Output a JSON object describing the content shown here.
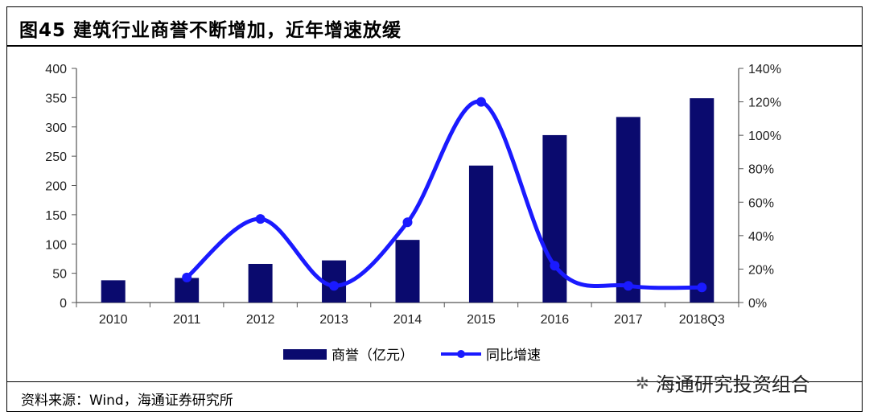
{
  "title": "图45 建筑行业商誉不断增加，近年增速放缓",
  "source": "资料来源：Wind，海通证券研究所",
  "watermark": "海通研究投资组合",
  "colors": {
    "bar": "#0a0a6e",
    "line": "#1a1aff",
    "axis": "#555555"
  },
  "chart_data": {
    "type": "bar",
    "categories": [
      "2010",
      "2011",
      "2012",
      "2013",
      "2014",
      "2015",
      "2016",
      "2017",
      "2018Q3"
    ],
    "series": [
      {
        "name": "商誉（亿元）",
        "type": "bar",
        "axis": "left",
        "values": [
          38,
          42,
          66,
          72,
          107,
          234,
          286,
          317,
          349
        ]
      },
      {
        "name": "同比增速",
        "type": "line",
        "axis": "right",
        "values": [
          null,
          0.15,
          0.5,
          0.1,
          0.48,
          1.2,
          0.22,
          0.1,
          0.09
        ]
      }
    ],
    "ylim_left": [
      0,
      400
    ],
    "yticks_left": [
      "0",
      "50",
      "100",
      "150",
      "200",
      "250",
      "300",
      "350",
      "400"
    ],
    "ylim_right": [
      0,
      1.4
    ],
    "yticks_right": [
      "0%",
      "20%",
      "40%",
      "60%",
      "80%",
      "100%",
      "120%",
      "140%"
    ],
    "legend_position": "bottom"
  }
}
